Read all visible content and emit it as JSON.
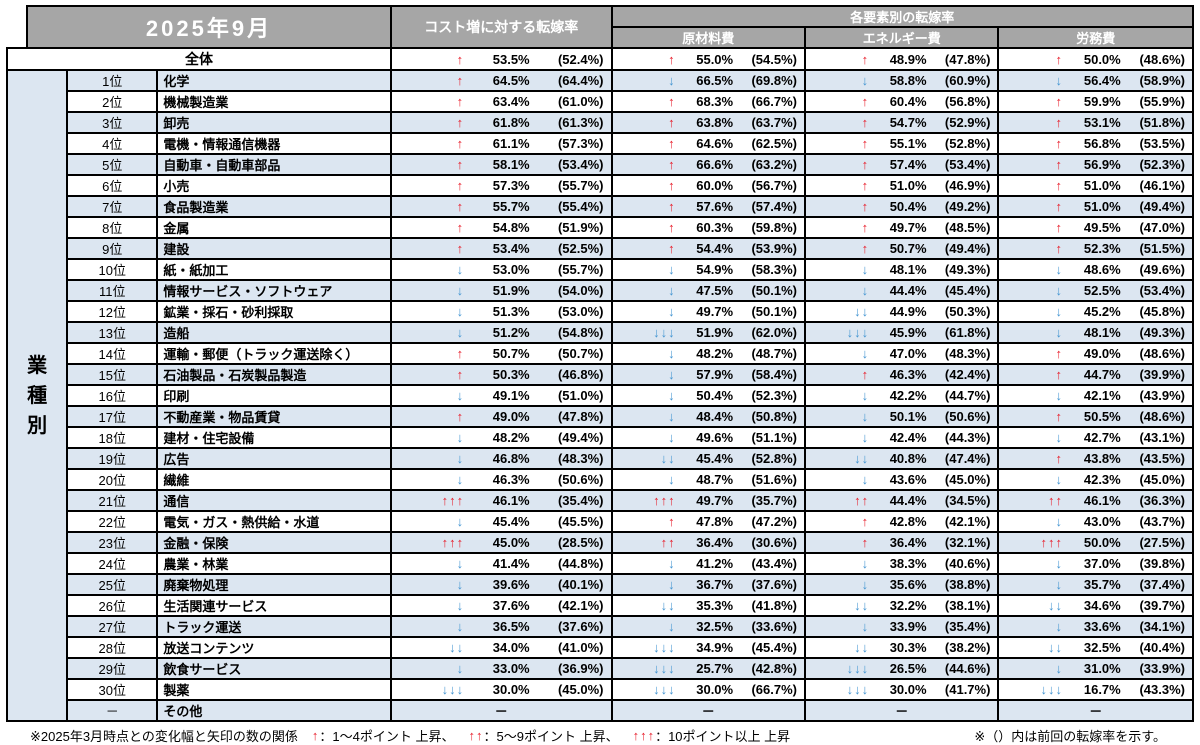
{
  "colors": {
    "header_bg": "#a6a6a6",
    "header_text": "#ffffff",
    "row_alt_bg": "#dce6f1",
    "arrow_up": "#e8212e",
    "arrow_down": "#4596d2",
    "border": "#000000"
  },
  "header": {
    "title": "2025年9月",
    "cost_col": "コスト増に対する転嫁率",
    "group_col": "各要素別の転嫁率",
    "sub_cols": [
      "原材料費",
      "エネルギー費",
      "労務費"
    ],
    "side_label": "業種別"
  },
  "chart_data": {
    "type": "table",
    "title": "2025年9月 コスト増に対する転嫁率（業種別）",
    "columns": [
      "コスト増に対する転嫁率",
      "原材料費",
      "エネルギー費",
      "労務費"
    ],
    "overall": {
      "name": "全体",
      "cells": [
        [
          "↑",
          "53.5%",
          "(52.4%)"
        ],
        [
          "↑",
          "55.0%",
          "(54.5%)"
        ],
        [
          "↑",
          "48.9%",
          "(47.8%)"
        ],
        [
          "↑",
          "50.0%",
          "(48.6%)"
        ]
      ]
    },
    "rows": [
      {
        "rank": "1位",
        "name": "化学",
        "cells": [
          [
            "↑",
            "64.5%",
            "(64.4%)"
          ],
          [
            "↓",
            "66.5%",
            "(69.8%)"
          ],
          [
            "↓",
            "58.8%",
            "(60.9%)"
          ],
          [
            "↓",
            "56.4%",
            "(58.9%)"
          ]
        ]
      },
      {
        "rank": "2位",
        "name": "機械製造業",
        "cells": [
          [
            "↑",
            "63.4%",
            "(61.0%)"
          ],
          [
            "↑",
            "68.3%",
            "(66.7%)"
          ],
          [
            "↑",
            "60.4%",
            "(56.8%)"
          ],
          [
            "↑",
            "59.9%",
            "(55.9%)"
          ]
        ]
      },
      {
        "rank": "3位",
        "name": "卸売",
        "cells": [
          [
            "↑",
            "61.8%",
            "(61.3%)"
          ],
          [
            "↑",
            "63.8%",
            "(63.7%)"
          ],
          [
            "↑",
            "54.7%",
            "(52.9%)"
          ],
          [
            "↑",
            "53.1%",
            "(51.8%)"
          ]
        ]
      },
      {
        "rank": "4位",
        "name": "電機・情報通信機器",
        "cells": [
          [
            "↑",
            "61.1%",
            "(57.3%)"
          ],
          [
            "↑",
            "64.6%",
            "(62.5%)"
          ],
          [
            "↑",
            "55.1%",
            "(52.8%)"
          ],
          [
            "↑",
            "56.8%",
            "(53.5%)"
          ]
        ]
      },
      {
        "rank": "5位",
        "name": "自動車・自動車部品",
        "cells": [
          [
            "↑",
            "58.1%",
            "(53.4%)"
          ],
          [
            "↑",
            "66.6%",
            "(63.2%)"
          ],
          [
            "↑",
            "57.4%",
            "(53.4%)"
          ],
          [
            "↑",
            "56.9%",
            "(52.3%)"
          ]
        ]
      },
      {
        "rank": "6位",
        "name": "小売",
        "cells": [
          [
            "↑",
            "57.3%",
            "(55.7%)"
          ],
          [
            "↑",
            "60.0%",
            "(56.7%)"
          ],
          [
            "↑",
            "51.0%",
            "(46.9%)"
          ],
          [
            "↑",
            "51.0%",
            "(46.1%)"
          ]
        ]
      },
      {
        "rank": "7位",
        "name": "食品製造業",
        "cells": [
          [
            "↑",
            "55.7%",
            "(55.4%)"
          ],
          [
            "↑",
            "57.6%",
            "(57.4%)"
          ],
          [
            "↑",
            "50.4%",
            "(49.2%)"
          ],
          [
            "↑",
            "51.0%",
            "(49.4%)"
          ]
        ]
      },
      {
        "rank": "8位",
        "name": "金属",
        "cells": [
          [
            "↑",
            "54.8%",
            "(51.9%)"
          ],
          [
            "↑",
            "60.3%",
            "(59.8%)"
          ],
          [
            "↑",
            "49.7%",
            "(48.5%)"
          ],
          [
            "↑",
            "49.5%",
            "(47.0%)"
          ]
        ]
      },
      {
        "rank": "9位",
        "name": "建設",
        "cells": [
          [
            "↑",
            "53.4%",
            "(52.5%)"
          ],
          [
            "↑",
            "54.4%",
            "(53.9%)"
          ],
          [
            "↑",
            "50.7%",
            "(49.4%)"
          ],
          [
            "↑",
            "52.3%",
            "(51.5%)"
          ]
        ]
      },
      {
        "rank": "10位",
        "name": "紙・紙加工",
        "cells": [
          [
            "↓",
            "53.0%",
            "(55.7%)"
          ],
          [
            "↓",
            "54.9%",
            "(58.3%)"
          ],
          [
            "↓",
            "48.1%",
            "(49.3%)"
          ],
          [
            "↓",
            "48.6%",
            "(49.6%)"
          ]
        ]
      },
      {
        "rank": "11位",
        "name": "情報サービス・ソフトウェア",
        "cells": [
          [
            "↓",
            "51.9%",
            "(54.0%)"
          ],
          [
            "↓",
            "47.5%",
            "(50.1%)"
          ],
          [
            "↓",
            "44.4%",
            "(45.4%)"
          ],
          [
            "↓",
            "52.5%",
            "(53.4%)"
          ]
        ]
      },
      {
        "rank": "12位",
        "name": "鉱業・採石・砂利採取",
        "cells": [
          [
            "↓",
            "51.3%",
            "(53.0%)"
          ],
          [
            "↓",
            "49.7%",
            "(50.1%)"
          ],
          [
            "↓↓",
            "44.9%",
            "(50.3%)"
          ],
          [
            "↓",
            "45.2%",
            "(45.8%)"
          ]
        ]
      },
      {
        "rank": "13位",
        "name": "造船",
        "cells": [
          [
            "↓",
            "51.2%",
            "(54.8%)"
          ],
          [
            "↓↓↓",
            "51.9%",
            "(62.0%)"
          ],
          [
            "↓↓↓",
            "45.9%",
            "(61.8%)"
          ],
          [
            "↓",
            "48.1%",
            "(49.3%)"
          ]
        ]
      },
      {
        "rank": "14位",
        "name": "運輸・郵便（トラック運送除く）",
        "cells": [
          [
            "↑",
            "50.7%",
            "(50.7%)"
          ],
          [
            "↓",
            "48.2%",
            "(48.7%)"
          ],
          [
            "↓",
            "47.0%",
            "(48.3%)"
          ],
          [
            "↑",
            "49.0%",
            "(48.6%)"
          ]
        ]
      },
      {
        "rank": "15位",
        "name": "石油製品・石炭製品製造",
        "cells": [
          [
            "↑",
            "50.3%",
            "(46.8%)"
          ],
          [
            "↓",
            "57.9%",
            "(58.4%)"
          ],
          [
            "↑",
            "46.3%",
            "(42.4%)"
          ],
          [
            "↑",
            "44.7%",
            "(39.9%)"
          ]
        ]
      },
      {
        "rank": "16位",
        "name": "印刷",
        "cells": [
          [
            "↓",
            "49.1%",
            "(51.0%)"
          ],
          [
            "↓",
            "50.4%",
            "(52.3%)"
          ],
          [
            "↓",
            "42.2%",
            "(44.7%)"
          ],
          [
            "↓",
            "42.1%",
            "(43.9%)"
          ]
        ]
      },
      {
        "rank": "17位",
        "name": "不動産業・物品賃貸",
        "cells": [
          [
            "↑",
            "49.0%",
            "(47.8%)"
          ],
          [
            "↓",
            "48.4%",
            "(50.8%)"
          ],
          [
            "↓",
            "50.1%",
            "(50.6%)"
          ],
          [
            "↑",
            "50.5%",
            "(48.6%)"
          ]
        ]
      },
      {
        "rank": "18位",
        "name": "建材・住宅設備",
        "cells": [
          [
            "↓",
            "48.2%",
            "(49.4%)"
          ],
          [
            "↓",
            "49.6%",
            "(51.1%)"
          ],
          [
            "↓",
            "42.4%",
            "(44.3%)"
          ],
          [
            "↓",
            "42.7%",
            "(43.1%)"
          ]
        ]
      },
      {
        "rank": "19位",
        "name": "広告",
        "cells": [
          [
            "↓",
            "46.8%",
            "(48.3%)"
          ],
          [
            "↓↓",
            "45.4%",
            "(52.8%)"
          ],
          [
            "↓↓",
            "40.8%",
            "(47.4%)"
          ],
          [
            "↑",
            "43.8%",
            "(43.5%)"
          ]
        ]
      },
      {
        "rank": "20位",
        "name": "繊維",
        "cells": [
          [
            "↓",
            "46.3%",
            "(50.6%)"
          ],
          [
            "↓",
            "48.7%",
            "(51.6%)"
          ],
          [
            "↓",
            "43.6%",
            "(45.0%)"
          ],
          [
            "↓",
            "42.3%",
            "(45.0%)"
          ]
        ]
      },
      {
        "rank": "21位",
        "name": "通信",
        "cells": [
          [
            "↑↑↑",
            "46.1%",
            "(35.4%)"
          ],
          [
            "↑↑↑",
            "49.7%",
            "(35.7%)"
          ],
          [
            "↑↑",
            "44.4%",
            "(34.5%)"
          ],
          [
            "↑↑",
            "46.1%",
            "(36.3%)"
          ]
        ]
      },
      {
        "rank": "22位",
        "name": "電気・ガス・熱供給・水道",
        "cells": [
          [
            "↓",
            "45.4%",
            "(45.5%)"
          ],
          [
            "↑",
            "47.8%",
            "(47.2%)"
          ],
          [
            "↑",
            "42.8%",
            "(42.1%)"
          ],
          [
            "↓",
            "43.0%",
            "(43.7%)"
          ]
        ]
      },
      {
        "rank": "23位",
        "name": "金融・保険",
        "cells": [
          [
            "↑↑↑",
            "45.0%",
            "(28.5%)"
          ],
          [
            "↑↑",
            "36.4%",
            "(30.6%)"
          ],
          [
            "↑",
            "36.4%",
            "(32.1%)"
          ],
          [
            "↑↑↑",
            "50.0%",
            "(27.5%)"
          ]
        ]
      },
      {
        "rank": "24位",
        "name": "農業・林業",
        "cells": [
          [
            "↓",
            "41.4%",
            "(44.8%)"
          ],
          [
            "↓",
            "41.2%",
            "(43.4%)"
          ],
          [
            "↓",
            "38.3%",
            "(40.6%)"
          ],
          [
            "↓",
            "37.0%",
            "(39.8%)"
          ]
        ]
      },
      {
        "rank": "25位",
        "name": "廃棄物処理",
        "cells": [
          [
            "↓",
            "39.6%",
            "(40.1%)"
          ],
          [
            "↓",
            "36.7%",
            "(37.6%)"
          ],
          [
            "↓",
            "35.6%",
            "(38.8%)"
          ],
          [
            "↓",
            "35.7%",
            "(37.4%)"
          ]
        ]
      },
      {
        "rank": "26位",
        "name": "生活関連サービス",
        "cells": [
          [
            "↓",
            "37.6%",
            "(42.1%)"
          ],
          [
            "↓↓",
            "35.3%",
            "(41.8%)"
          ],
          [
            "↓↓",
            "32.2%",
            "(38.1%)"
          ],
          [
            "↓↓",
            "34.6%",
            "(39.7%)"
          ]
        ]
      },
      {
        "rank": "27位",
        "name": "トラック運送",
        "cells": [
          [
            "↓",
            "36.5%",
            "(37.6%)"
          ],
          [
            "↓",
            "32.5%",
            "(33.6%)"
          ],
          [
            "↓",
            "33.9%",
            "(35.4%)"
          ],
          [
            "↓",
            "33.6%",
            "(34.1%)"
          ]
        ]
      },
      {
        "rank": "28位",
        "name": "放送コンテンツ",
        "cells": [
          [
            "↓↓",
            "34.0%",
            "(41.0%)"
          ],
          [
            "↓↓↓",
            "34.9%",
            "(45.4%)"
          ],
          [
            "↓↓",
            "30.3%",
            "(38.2%)"
          ],
          [
            "↓↓",
            "32.5%",
            "(40.4%)"
          ]
        ]
      },
      {
        "rank": "29位",
        "name": "飲食サービス",
        "cells": [
          [
            "↓",
            "33.0%",
            "(36.9%)"
          ],
          [
            "↓↓↓",
            "25.7%",
            "(42.8%)"
          ],
          [
            "↓↓↓",
            "26.5%",
            "(44.6%)"
          ],
          [
            "↓",
            "31.0%",
            "(33.9%)"
          ]
        ]
      },
      {
        "rank": "30位",
        "name": "製薬",
        "cells": [
          [
            "↓↓↓",
            "30.0%",
            "(45.0%)"
          ],
          [
            "↓↓↓",
            "30.0%",
            "(66.7%)"
          ],
          [
            "↓↓↓",
            "30.0%",
            "(41.7%)"
          ],
          [
            "↓↓↓",
            "16.7%",
            "(43.3%)"
          ]
        ]
      },
      {
        "rank": "－",
        "name": "その他",
        "cells": [
          [
            "",
            "－",
            ""
          ],
          [
            "",
            "－",
            ""
          ],
          [
            "",
            "－",
            ""
          ],
          [
            "",
            "－",
            ""
          ]
        ]
      }
    ]
  },
  "footer": {
    "note_lead": "※2025年3月時点との変化幅と矢印の数の関係",
    "legend": [
      {
        "arrow": "↑",
        "text": "：1～4ポイント 上昇、"
      },
      {
        "arrow": "↑↑",
        "text": "：5～9ポイント 上昇、"
      },
      {
        "arrow": "↑↑↑",
        "text": "：10ポイント以上 上昇"
      }
    ],
    "note_right": "※（）内は前回の転嫁率を示す。"
  }
}
